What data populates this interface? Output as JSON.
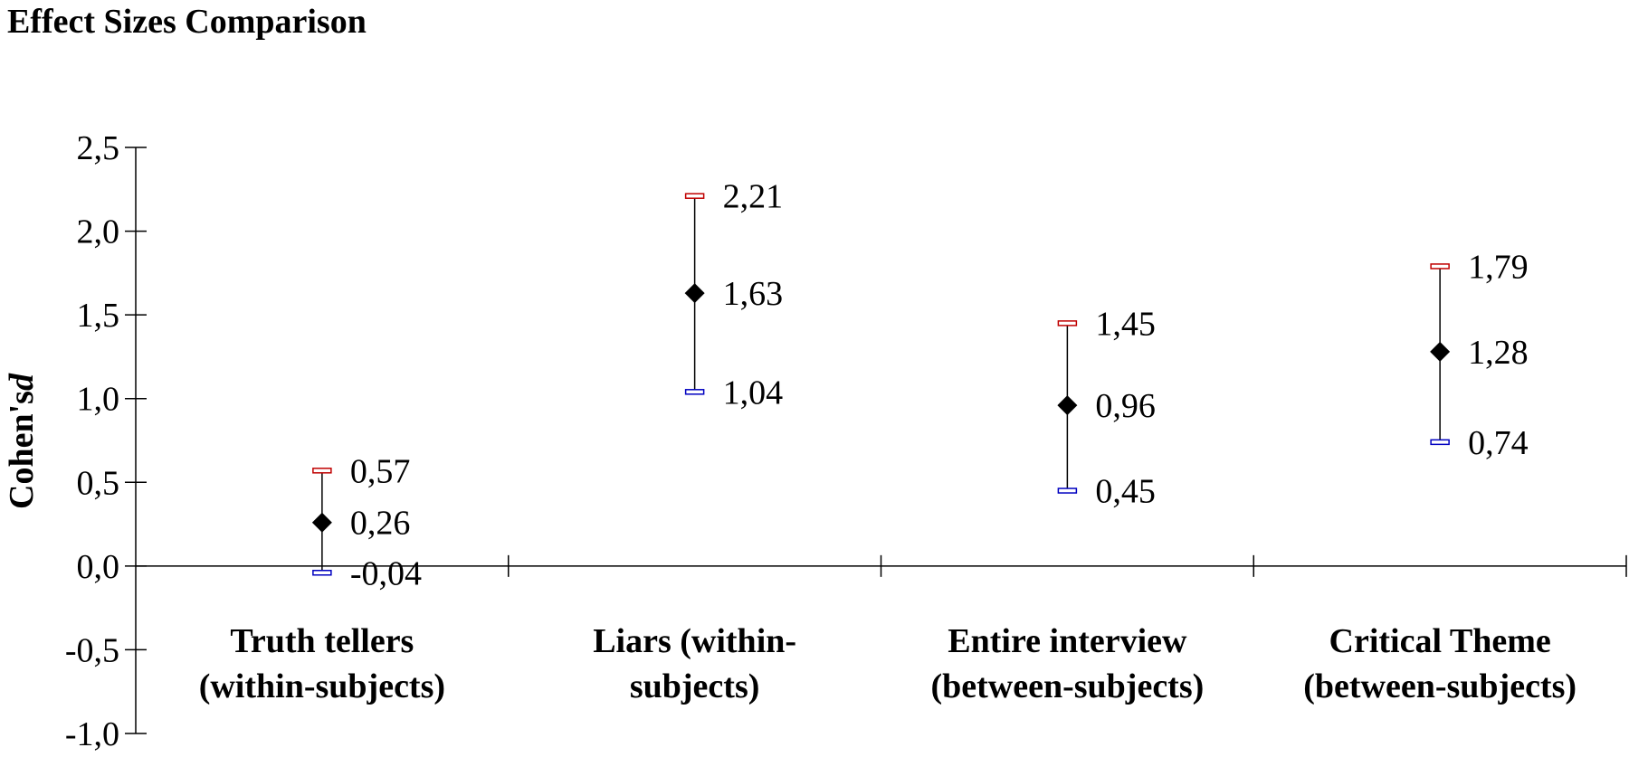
{
  "chart_data": {
    "type": "scatter",
    "title": "Effect Sizes Comparison",
    "xlabel": "",
    "ylabel": "Cohen's",
    "ylabel_italic": "d",
    "ylim": [
      -1.0,
      2.5
    ],
    "y_ticks": [
      "2,5",
      "2,0",
      "1,5",
      "1,0",
      "0,5",
      "0,0",
      "-0,5",
      "-1,0"
    ],
    "y_tick_values": [
      2.5,
      2.0,
      1.5,
      1.0,
      0.5,
      0.0,
      -0.5,
      -1.0
    ],
    "grid": false,
    "categories": [
      [
        "Truth tellers",
        "(within-subjects)"
      ],
      [
        "Liars (within-",
        "subjects)"
      ],
      [
        "Entire interview",
        "(between-subjects)"
      ],
      [
        "Critical Theme",
        "(between-subjects)"
      ]
    ],
    "series": [
      {
        "values": [
          0.26,
          1.63,
          0.96,
          1.28
        ],
        "labels": [
          "0,26",
          "1,63",
          "0,96",
          "1,28"
        ],
        "marker": "diamond",
        "color": "#000000"
      },
      {
        "values": [
          0.57,
          2.21,
          1.45,
          1.79
        ],
        "labels": [
          "0,57",
          "2,21",
          "1,45",
          "1,79"
        ],
        "marker": "bar",
        "color": "#c00000"
      },
      {
        "values": [
          -0.04,
          1.04,
          0.45,
          0.74
        ],
        "labels": [
          "-0,04",
          "1,04",
          "0,45",
          "0,74"
        ],
        "marker": "bar",
        "color": "#0000c0"
      }
    ]
  }
}
